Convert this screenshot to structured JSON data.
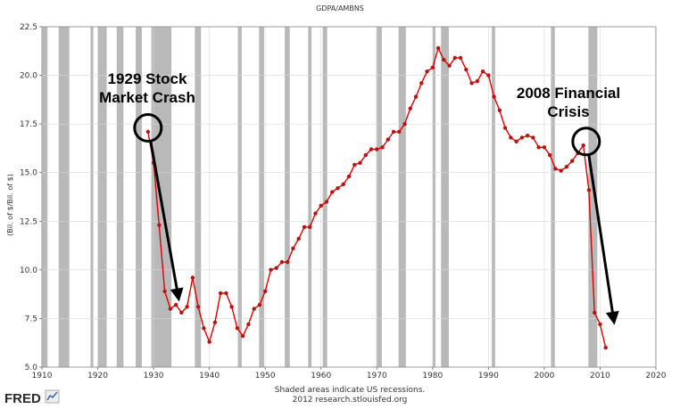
{
  "chart_data": {
    "type": "line",
    "title": "GDPA/AMBNS",
    "ylabel": "(Bil. of $/Bil. of $)",
    "xlim": [
      1910,
      2020
    ],
    "ylim": [
      5.0,
      22.5
    ],
    "x_ticks": [
      1910,
      1920,
      1930,
      1940,
      1950,
      1960,
      1970,
      1980,
      1990,
      2000,
      2010,
      2020
    ],
    "y_ticks": [
      5.0,
      7.5,
      10.0,
      12.5,
      15.0,
      17.5,
      20.0,
      22.5
    ],
    "x_tick_labels": [
      "1910",
      "1920",
      "1930",
      "1940",
      "1950",
      "1960",
      "1970",
      "1980",
      "1990",
      "2000",
      "2010",
      "2020"
    ],
    "y_tick_labels": [
      "5.0",
      "7.5",
      "10.0",
      "12.5",
      "15.0",
      "17.5",
      "20.0",
      "22.5"
    ],
    "grid": true,
    "line_color": "#dd0000",
    "marker_color": "#bb1111",
    "recession_color": "#b9b9b9",
    "plot_background": "#ffffff",
    "recessions": [
      [
        1910.1,
        1911.0
      ],
      [
        1913.0,
        1914.9
      ],
      [
        1918.7,
        1919.2
      ],
      [
        1920.0,
        1921.6
      ],
      [
        1923.4,
        1924.6
      ],
      [
        1926.8,
        1927.9
      ],
      [
        1929.6,
        1933.2
      ],
      [
        1937.4,
        1938.5
      ],
      [
        1945.1,
        1945.8
      ],
      [
        1948.9,
        1949.8
      ],
      [
        1953.5,
        1954.4
      ],
      [
        1957.7,
        1958.3
      ],
      [
        1960.3,
        1961.1
      ],
      [
        1969.9,
        1970.9
      ],
      [
        1973.9,
        1975.2
      ],
      [
        1980.0,
        1980.5
      ],
      [
        1981.5,
        1982.9
      ],
      [
        1990.6,
        1991.2
      ],
      [
        2001.2,
        2001.9
      ],
      [
        2007.9,
        2009.5
      ]
    ],
    "series": [
      {
        "points": [
          [
            1929,
            17.1
          ],
          [
            1930,
            15.5
          ],
          [
            1931,
            12.3
          ],
          [
            1932,
            8.9
          ],
          [
            1933,
            8.0
          ],
          [
            1934,
            8.2
          ],
          [
            1935,
            7.8
          ],
          [
            1936,
            8.1
          ],
          [
            1937,
            9.6
          ],
          [
            1938,
            8.1
          ],
          [
            1939,
            7.0
          ],
          [
            1940,
            6.3
          ],
          [
            1941,
            7.3
          ],
          [
            1942,
            8.8
          ],
          [
            1943,
            8.8
          ],
          [
            1944,
            8.1
          ],
          [
            1945,
            7.0
          ],
          [
            1946,
            6.6
          ],
          [
            1947,
            7.2
          ],
          [
            1948,
            8.0
          ],
          [
            1949,
            8.2
          ],
          [
            1950,
            8.9
          ],
          [
            1951,
            10.0
          ],
          [
            1952,
            10.1
          ],
          [
            1953,
            10.4
          ],
          [
            1954,
            10.4
          ],
          [
            1955,
            11.1
          ],
          [
            1956,
            11.6
          ],
          [
            1957,
            12.2
          ],
          [
            1958,
            12.2
          ],
          [
            1959,
            12.9
          ],
          [
            1960,
            13.3
          ],
          [
            1961,
            13.5
          ],
          [
            1962,
            14.0
          ],
          [
            1963,
            14.2
          ],
          [
            1964,
            14.4
          ],
          [
            1965,
            14.8
          ],
          [
            1966,
            15.4
          ],
          [
            1967,
            15.5
          ],
          [
            1968,
            15.9
          ],
          [
            1969,
            16.2
          ],
          [
            1970,
            16.2
          ],
          [
            1971,
            16.3
          ],
          [
            1972,
            16.7
          ],
          [
            1973,
            17.1
          ],
          [
            1974,
            17.1
          ],
          [
            1975,
            17.5
          ],
          [
            1976,
            18.3
          ],
          [
            1977,
            18.9
          ],
          [
            1978,
            19.6
          ],
          [
            1979,
            20.2
          ],
          [
            1980,
            20.4
          ],
          [
            1981,
            21.4
          ],
          [
            1982,
            20.8
          ],
          [
            1983,
            20.5
          ],
          [
            1984,
            20.9
          ],
          [
            1985,
            20.9
          ],
          [
            1986,
            20.3
          ],
          [
            1987,
            19.6
          ],
          [
            1988,
            19.7
          ],
          [
            1989,
            20.2
          ],
          [
            1990,
            20.0
          ],
          [
            1991,
            18.9
          ],
          [
            1992,
            18.2
          ],
          [
            1993,
            17.3
          ],
          [
            1994,
            16.8
          ],
          [
            1995,
            16.6
          ],
          [
            1996,
            16.8
          ],
          [
            1997,
            16.9
          ],
          [
            1998,
            16.8
          ],
          [
            1999,
            16.3
          ],
          [
            2000,
            16.3
          ],
          [
            2001,
            15.9
          ],
          [
            2002,
            15.2
          ],
          [
            2003,
            15.1
          ],
          [
            2004,
            15.3
          ],
          [
            2005,
            15.6
          ],
          [
            2006,
            16.0
          ],
          [
            2007,
            16.4
          ],
          [
            2008,
            14.1
          ],
          [
            2009,
            7.8
          ],
          [
            2010,
            7.2
          ],
          [
            2011,
            6.0
          ]
        ]
      }
    ],
    "annotations": [
      {
        "lines": [
          "1929 Stock",
          "Market Crash"
        ],
        "circle_at": [
          1929,
          17.3
        ],
        "arrow_to": [
          1934.5,
          8.5
        ]
      },
      {
        "lines": [
          "2008 Financial",
          "Crisis"
        ],
        "circle_at": [
          2007.5,
          16.6
        ],
        "arrow_to": [
          2012.5,
          7.3
        ]
      }
    ]
  },
  "footer": {
    "line1": "Shaded areas indicate US recessions.",
    "line2": "2012 research.stlouisfed.org"
  },
  "logo": {
    "text": "FRED"
  }
}
